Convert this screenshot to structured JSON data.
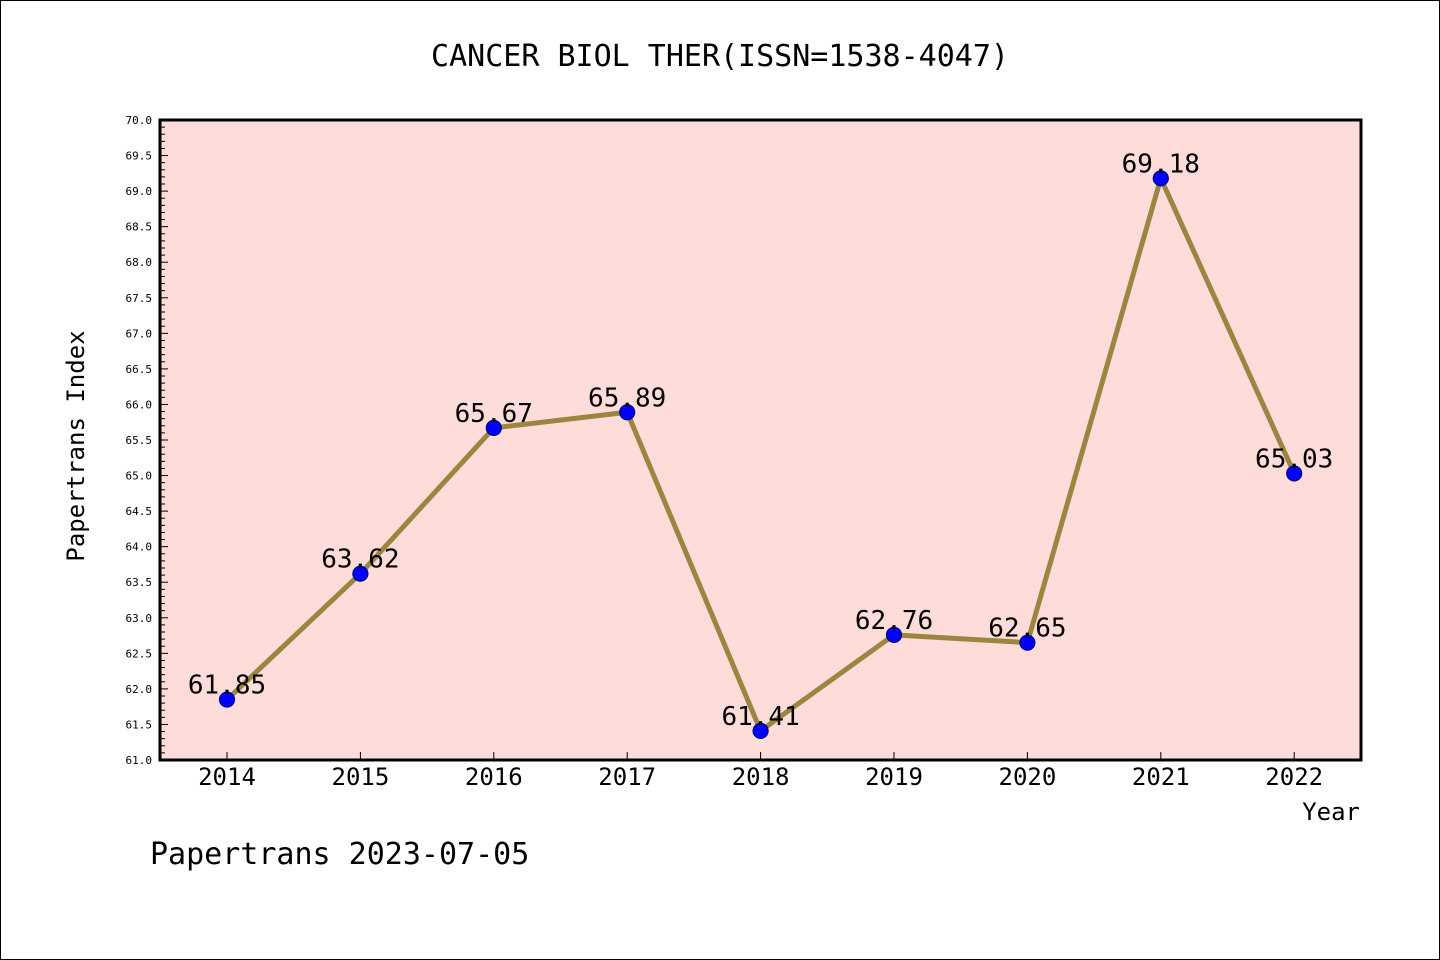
{
  "chart_data": {
    "type": "line",
    "title": "CANCER BIOL THER(ISSN=1538-4047)",
    "xlabel": "Year",
    "ylabel": "Papertrans Index",
    "categories": [
      "2014",
      "2015",
      "2016",
      "2017",
      "2018",
      "2019",
      "2020",
      "2021",
      "2022"
    ],
    "series": [
      {
        "values": [
          61.85,
          63.62,
          65.67,
          65.89,
          61.41,
          62.76,
          62.65,
          69.18,
          65.03
        ],
        "data_labels": [
          "61.85",
          "63.62",
          "65.67",
          "65.89",
          "61.41",
          "62.76",
          "62.65",
          "69.18",
          "65.03"
        ]
      }
    ],
    "ylim": [
      61.0,
      70.0
    ],
    "yticks": [
      "61.0",
      "61.5",
      "62.0",
      "62.5",
      "63.0",
      "63.5",
      "64.0",
      "64.5",
      "65.0",
      "65.5",
      "66.0",
      "66.5",
      "67.0",
      "67.5",
      "68.0",
      "68.5",
      "69.0",
      "69.5",
      "70.0"
    ],
    "grid": false,
    "colors": {
      "plot_background": "#FDDCD9",
      "line": "#9B8540",
      "marker": "#0000FF",
      "marker_edge": "#00008B"
    }
  },
  "footer": "Papertrans 2023-07-05"
}
